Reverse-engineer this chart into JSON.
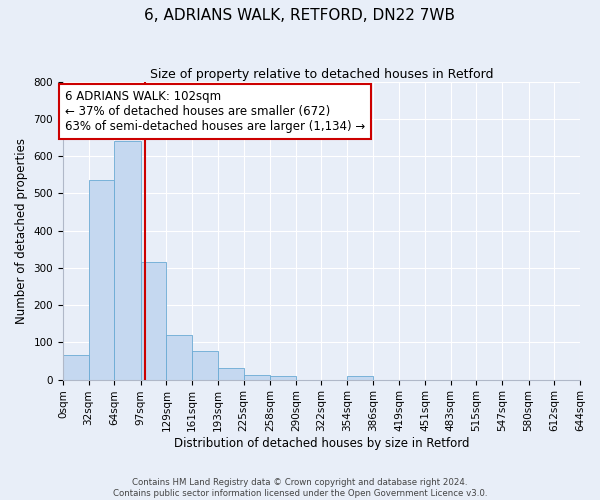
{
  "title": "6, ADRIANS WALK, RETFORD, DN22 7WB",
  "subtitle": "Size of property relative to detached houses in Retford",
  "xlabel": "Distribution of detached houses by size in Retford",
  "ylabel": "Number of detached properties",
  "bin_labels": [
    "0sqm",
    "32sqm",
    "64sqm",
    "97sqm",
    "129sqm",
    "161sqm",
    "193sqm",
    "225sqm",
    "258sqm",
    "290sqm",
    "322sqm",
    "354sqm",
    "386sqm",
    "419sqm",
    "451sqm",
    "483sqm",
    "515sqm",
    "547sqm",
    "580sqm",
    "612sqm",
    "644sqm"
  ],
  "bin_edges": [
    0,
    32,
    64,
    97,
    129,
    161,
    193,
    225,
    258,
    290,
    322,
    354,
    386,
    419,
    451,
    483,
    515,
    547,
    580,
    612,
    644
  ],
  "bar_heights": [
    65,
    537,
    642,
    315,
    120,
    76,
    32,
    13,
    10,
    0,
    0,
    10,
    0,
    0,
    0,
    0,
    0,
    0,
    0,
    0
  ],
  "bar_color": "#c5d8f0",
  "bar_edgecolor": "#6aaad4",
  "property_value": 102,
  "vline_color": "#cc0000",
  "annotation_text": "6 ADRIANS WALK: 102sqm\n← 37% of detached houses are smaller (672)\n63% of semi-detached houses are larger (1,134) →",
  "annotation_box_edgecolor": "#cc0000",
  "annotation_box_facecolor": "#ffffff",
  "ylim": [
    0,
    800
  ],
  "yticks": [
    0,
    100,
    200,
    300,
    400,
    500,
    600,
    700,
    800
  ],
  "background_color": "#e8eef8",
  "grid_color": "#ffffff",
  "footer_text": "Contains HM Land Registry data © Crown copyright and database right 2024.\nContains public sector information licensed under the Open Government Licence v3.0.",
  "title_fontsize": 11,
  "subtitle_fontsize": 9,
  "axis_label_fontsize": 8.5,
  "tick_fontsize": 7.5,
  "annotation_fontsize": 8.5
}
